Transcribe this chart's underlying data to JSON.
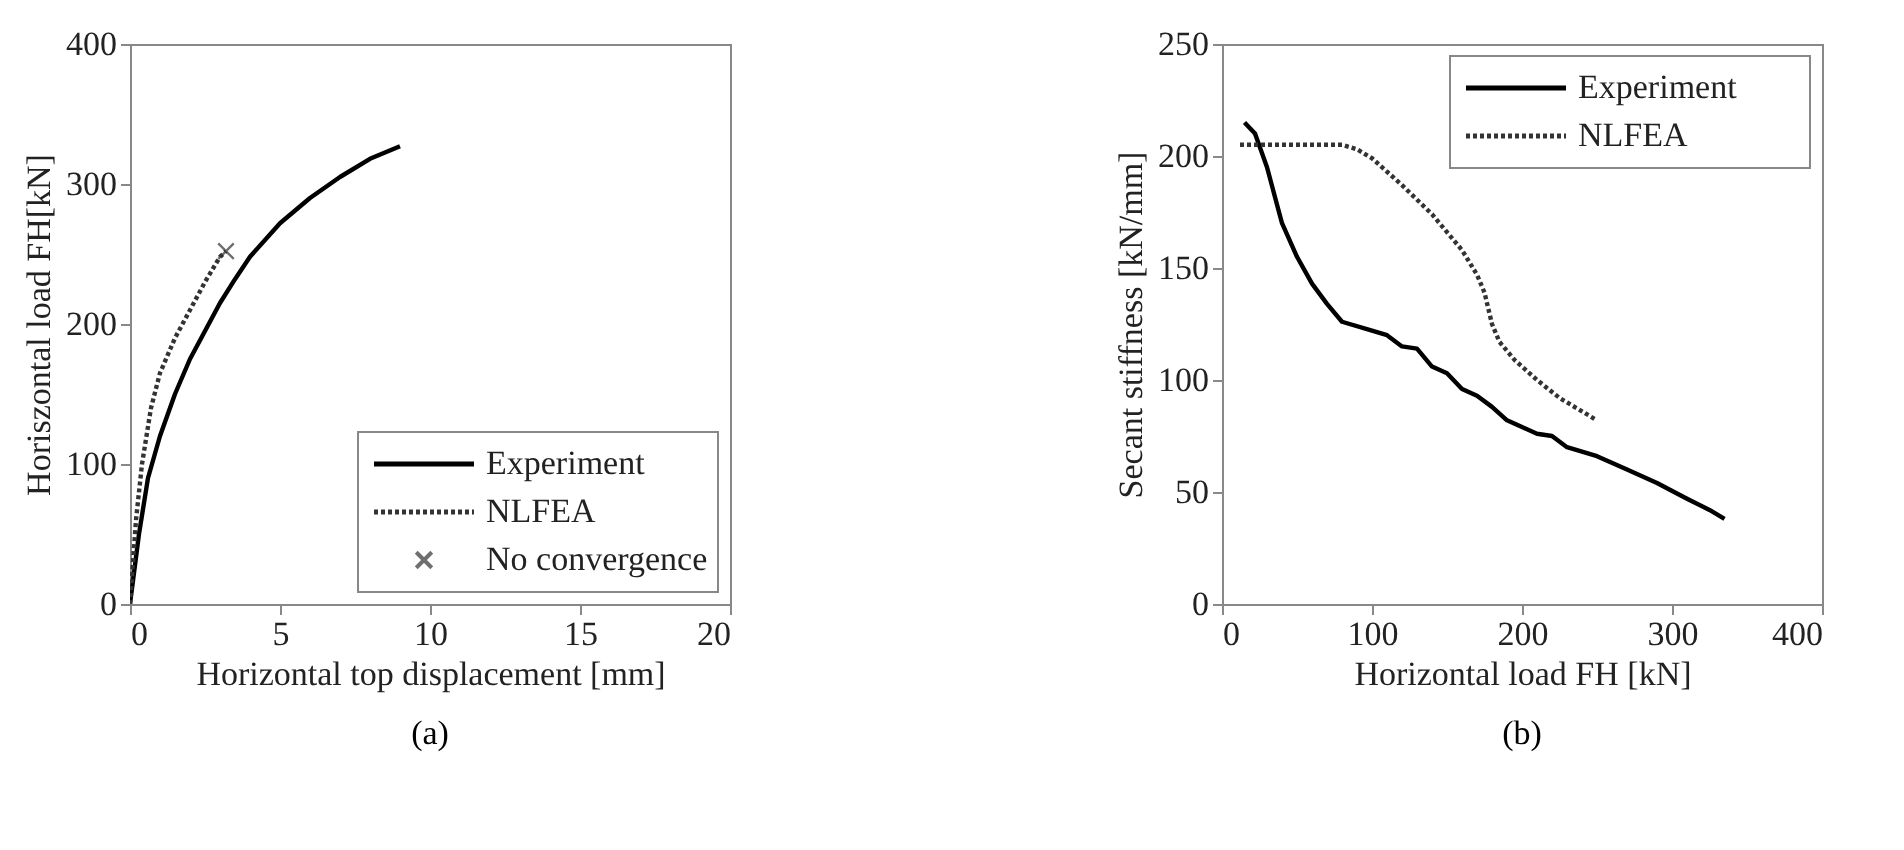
{
  "chart_data": [
    {
      "type": "line",
      "title": "(a)",
      "xlabel": "Horizontal top displacement [mm]",
      "ylabel": "Horiszontal load FH[kN]",
      "xlim": [
        0,
        20
      ],
      "ylim": [
        0,
        400
      ],
      "xticks": [
        0,
        5,
        10,
        15,
        20
      ],
      "yticks": [
        0,
        100,
        200,
        300,
        400
      ],
      "grid": false,
      "legend": "bottom right",
      "series": [
        {
          "name": "Experiment",
          "color": "#000000",
          "line_style": "solid",
          "x": [
            0,
            0.3,
            0.6,
            1,
            1.5,
            2,
            2.5,
            3,
            3.5,
            4,
            5,
            6,
            7,
            8,
            9
          ],
          "values": [
            0,
            50,
            90,
            120,
            150,
            175,
            195,
            215,
            232,
            248,
            272,
            290,
            305,
            318,
            327
          ]
        },
        {
          "name": "NLFEA",
          "color": "#333333",
          "line_style": "dotted",
          "x": [
            0,
            0.2,
            0.4,
            0.7,
            1,
            1.5,
            2,
            2.5,
            3,
            3.2
          ],
          "values": [
            0,
            60,
            100,
            140,
            165,
            190,
            210,
            230,
            248,
            252
          ]
        },
        {
          "name": "No convergence",
          "type": "scatter",
          "marker": "cross",
          "color": "#333333",
          "x": [
            3.2
          ],
          "values": [
            252
          ]
        }
      ]
    },
    {
      "type": "line",
      "title": "(b)",
      "xlabel": "Horizontal load FH [kN]",
      "ylabel": "Secant stiffness [kN/mm]",
      "xlim": [
        0,
        400
      ],
      "ylim": [
        0,
        250
      ],
      "xticks": [
        0,
        100,
        200,
        300,
        400
      ],
      "yticks": [
        0,
        50,
        100,
        150,
        200,
        250
      ],
      "grid": false,
      "legend": "top right",
      "series": [
        {
          "name": "Experiment",
          "color": "#000000",
          "line_style": "solid",
          "x": [
            15,
            22,
            30,
            40,
            50,
            60,
            70,
            80,
            100,
            110,
            120,
            130,
            140,
            150,
            160,
            170,
            180,
            190,
            200,
            210,
            220,
            230,
            250,
            270,
            290,
            310,
            325,
            335
          ],
          "values": [
            215,
            210,
            195,
            170,
            155,
            143,
            134,
            126,
            122,
            120,
            115,
            114,
            106,
            103,
            96,
            93,
            88,
            82,
            79,
            76,
            75,
            70,
            66,
            60,
            54,
            47,
            42,
            38
          ]
        },
        {
          "name": "NLFEA",
          "color": "#333333",
          "line_style": "dotted",
          "x": [
            12,
            80,
            90,
            100,
            120,
            140,
            160,
            170,
            175,
            180,
            185,
            195,
            210,
            225,
            240,
            250
          ],
          "values": [
            205,
            205,
            203,
            199,
            187,
            174,
            158,
            147,
            139,
            125,
            117,
            109,
            100,
            92,
            86,
            82
          ]
        }
      ]
    }
  ]
}
